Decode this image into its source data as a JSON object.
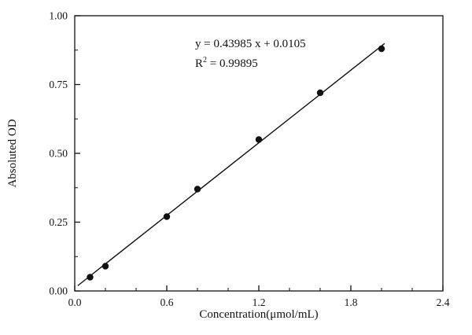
{
  "chart_data": {
    "type": "scatter",
    "title": "",
    "xlabel": "Concentration(μmol/mL)",
    "ylabel": "Absoluted OD",
    "xlim": [
      0.0,
      2.4
    ],
    "ylim": [
      0.0,
      1.0
    ],
    "x_ticks": [
      0.0,
      0.6,
      1.2,
      1.8,
      2.4
    ],
    "x_tick_labels": [
      "0.0",
      "0.6",
      "1.2",
      "1.8",
      "2.4"
    ],
    "y_ticks": [
      0.0,
      0.25,
      0.5,
      0.75,
      1.0
    ],
    "y_tick_labels": [
      "0.00",
      "0.25",
      "0.50",
      "0.75",
      "1.00"
    ],
    "x_minor_step": 0.2,
    "y_minor_step": 0.125,
    "grid": false,
    "legend": "none",
    "points": {
      "x": [
        0.1,
        0.2,
        0.6,
        0.8,
        1.2,
        1.6,
        2.0
      ],
      "y": [
        0.05,
        0.09,
        0.27,
        0.37,
        0.55,
        0.72,
        0.88
      ]
    },
    "fit": {
      "slope": 0.43985,
      "intercept": 0.0105,
      "x_start": 0.02,
      "x_end": 2.02
    },
    "annotation": {
      "equation": "y = 0.43985 x + 0.0105",
      "r2_prefix": "R",
      "r2_sup": "2",
      "r2_rest": " = 0.99895"
    },
    "marker_color": "#111111",
    "line_color": "#111111"
  }
}
